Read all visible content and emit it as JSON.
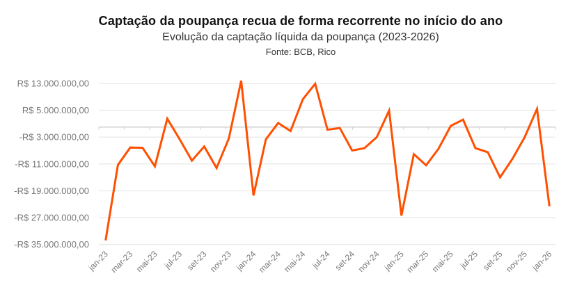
{
  "chart_data": {
    "type": "line",
    "title": "Captação da poupança recua de forma recorrente no início do ano",
    "subtitle": "Evolução da captação líquida da poupança (2023-2026)",
    "source": "Fonte: BCB, Rico",
    "xlabel": "",
    "ylabel": "",
    "ylim": [
      -35000000,
      13000000
    ],
    "grid": true,
    "legend": "none",
    "y_ticks": [
      13000000,
      5000000,
      -3000000,
      -11000000,
      -19000000,
      -27000000,
      -35000000
    ],
    "y_tick_labels": [
      "R$ 13.000.000,00",
      "R$ 5.000.000,00",
      "-R$ 3.000.000,00",
      "-R$ 11.000.000,00",
      "-R$ 19.000.000,00",
      "-R$ 27.000.000,00",
      "-R$ 35.000.000,00"
    ],
    "x_tick_labels": [
      "jan-23",
      "mar-23",
      "mai-23",
      "jul-23",
      "set-23",
      "nov-23",
      "jan-24",
      "mar-24",
      "mai-24",
      "jul-24",
      "set-24",
      "nov-24",
      "jan-25",
      "mar-25",
      "mai-25",
      "jul-25",
      "set-25",
      "nov-25",
      "jan-26"
    ],
    "x": [
      "jan-23",
      "fev-23",
      "mar-23",
      "abr-23",
      "mai-23",
      "jun-23",
      "jul-23",
      "ago-23",
      "set-23",
      "out-23",
      "nov-23",
      "dez-23",
      "jan-24",
      "fev-24",
      "mar-24",
      "abr-24",
      "mai-24",
      "jun-24",
      "jul-24",
      "ago-24",
      "set-24",
      "out-24",
      "nov-24",
      "dez-24",
      "jan-25",
      "fev-25",
      "mar-25",
      "abr-25",
      "mai-25",
      "jun-25",
      "jul-25",
      "ago-25",
      "set-25",
      "out-25",
      "nov-25",
      "dez-25",
      "jan-26"
    ],
    "series": [
      {
        "name": "Captação líquida",
        "color": "#ff4f00",
        "values": [
          -33800000,
          -11300000,
          -6100000,
          -6200000,
          -11700000,
          2500000,
          -3600000,
          -10000000,
          -5800000,
          -12200000,
          -3400000,
          13800000,
          -20400000,
          -3700000,
          1200000,
          -1200000,
          8300000,
          12900000,
          -800000,
          -300000,
          -7000000,
          -6300000,
          -3000000,
          4900000,
          -26400000,
          -8100000,
          -11400000,
          -6500000,
          350000,
          2200000,
          -6300000,
          -7500000,
          -15000000,
          -9500000,
          -3000000,
          5400000,
          -23600000
        ]
      }
    ]
  }
}
